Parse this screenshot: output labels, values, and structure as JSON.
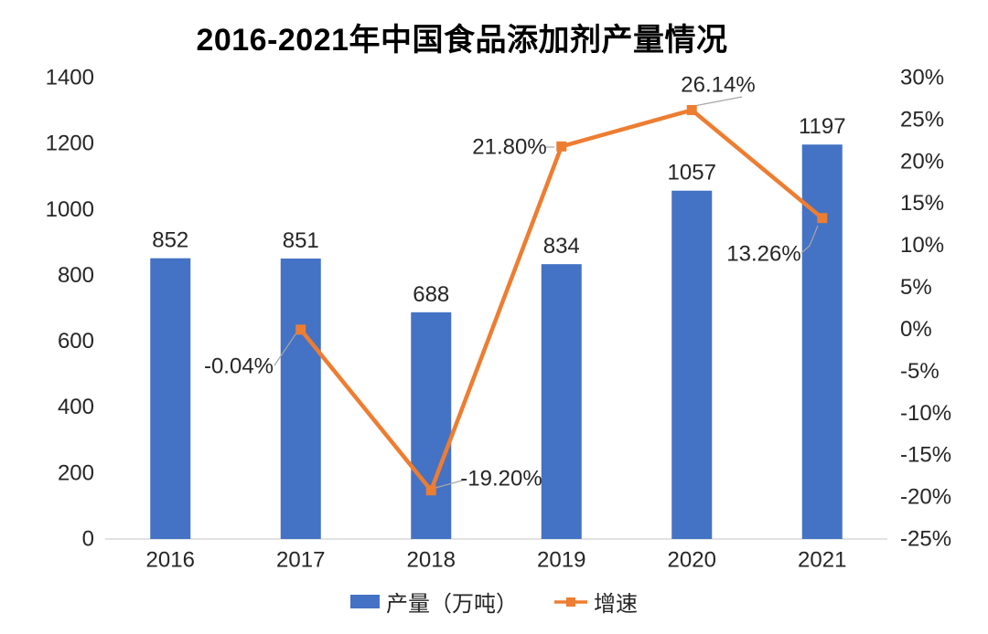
{
  "title": "2016-2021年中国食品添加剂产量情况",
  "colors": {
    "bar": "#4472C4",
    "line": "#ED7D31",
    "text": "#262626",
    "axis_line": "#D9D9D9",
    "leader": "#A6A6A6",
    "background": "#FFFFFF"
  },
  "legend": [
    {
      "label": "产量（万吨）",
      "type": "bar",
      "color": "#4472C4"
    },
    {
      "label": "增速",
      "type": "line",
      "color": "#ED7D31"
    }
  ],
  "chart_data": {
    "type": "combo-bar-line",
    "title": "2016-2021年中国食品添加剂产量情况",
    "categories": [
      "2016",
      "2017",
      "2018",
      "2019",
      "2020",
      "2021"
    ],
    "series": [
      {
        "name": "产量（万吨）",
        "type": "bar",
        "axis": "left",
        "color": "#4472C4",
        "values": [
          852,
          851,
          688,
          834,
          1057,
          1197
        ],
        "labels": [
          "852",
          "851",
          "688",
          "834",
          "1057",
          "1197"
        ]
      },
      {
        "name": "增速",
        "type": "line",
        "axis": "right",
        "color": "#ED7D31",
        "values": [
          null,
          -0.04,
          -19.2,
          21.8,
          26.14,
          13.26
        ],
        "labels": [
          null,
          "-0.04%",
          "-19.20%",
          "21.80%",
          "26.14%",
          "13.26%"
        ]
      }
    ],
    "left_axis": {
      "min": 0,
      "max": 1400,
      "tick_values": [
        0,
        200,
        400,
        600,
        800,
        1000,
        1200,
        1400
      ],
      "ticks": [
        "0",
        "200",
        "400",
        "600",
        "800",
        "1000",
        "1200",
        "1400"
      ]
    },
    "right_axis": {
      "min": -25,
      "max": 30,
      "tick_values": [
        30,
        25,
        20,
        15,
        10,
        5,
        0,
        -5,
        -10,
        -15,
        -20,
        -25
      ],
      "ticks": [
        "30%",
        "25%",
        "20%",
        "15%",
        "10%",
        "5%",
        "0%",
        "-5%",
        "-10%",
        "-15%",
        "-20%",
        "-25%"
      ]
    },
    "grid": false,
    "legend_position": "bottom"
  }
}
